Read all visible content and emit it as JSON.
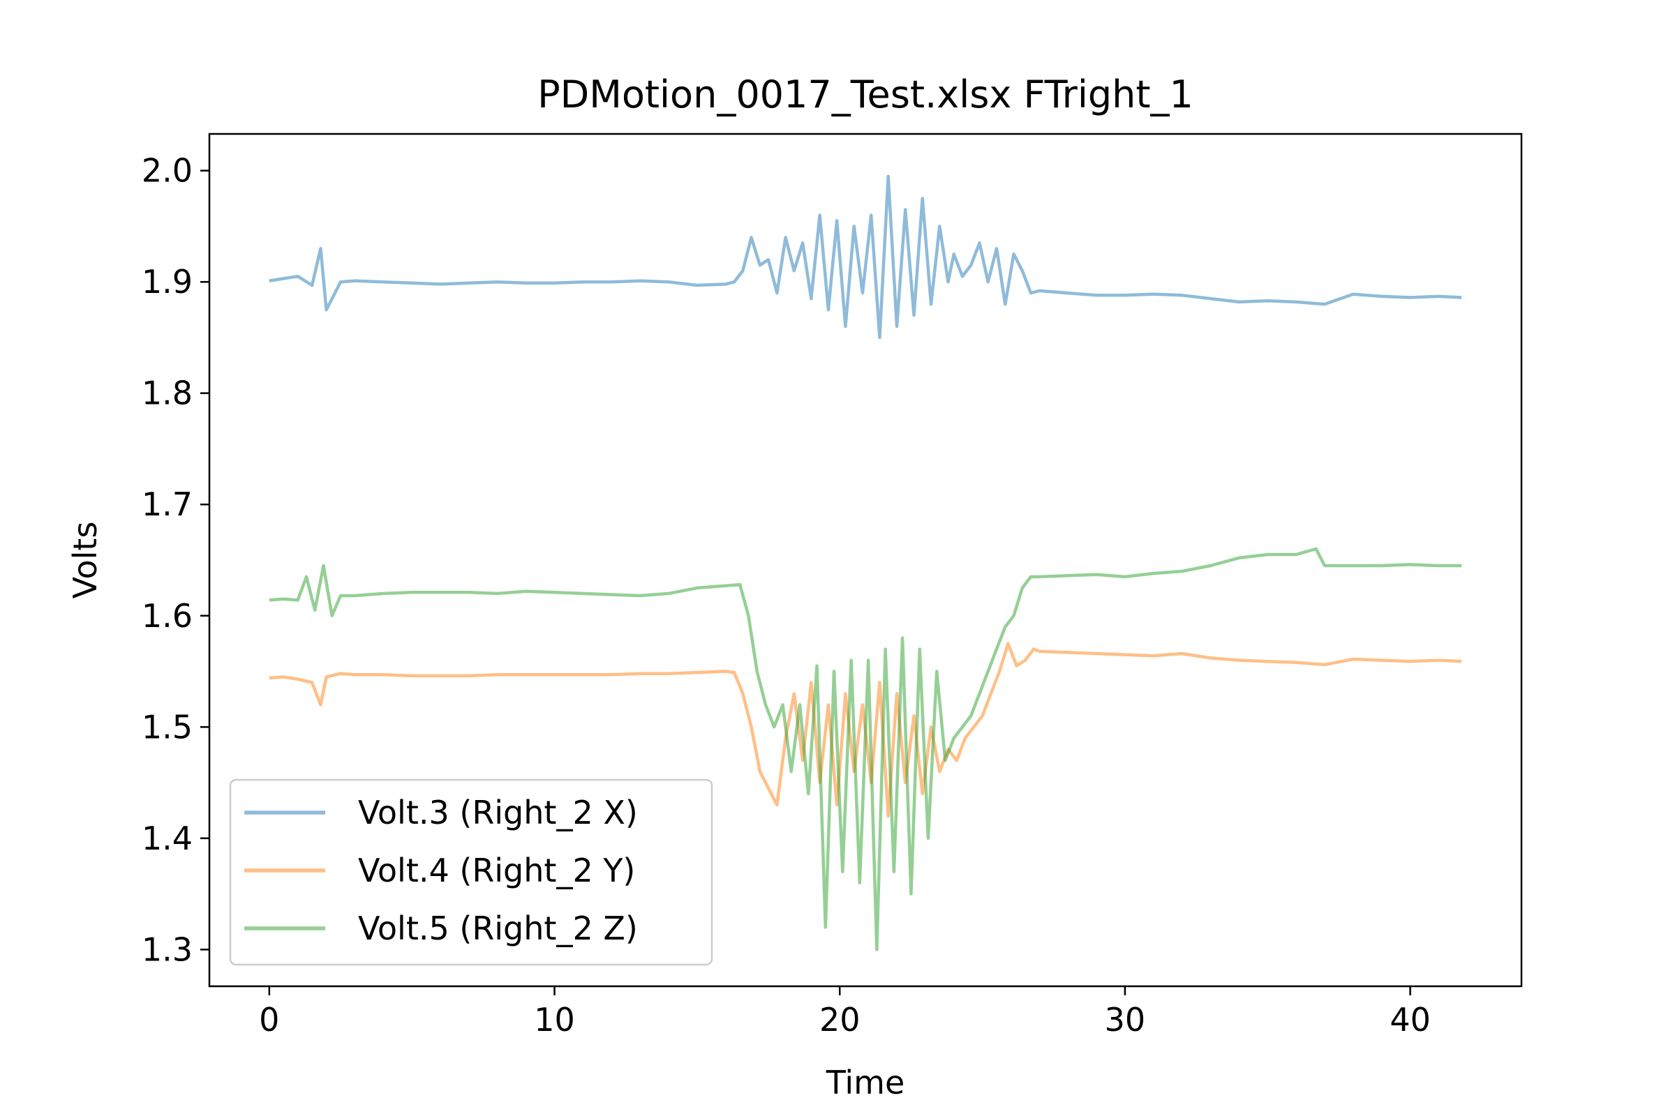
{
  "chart_data": {
    "type": "line",
    "title": "PDMotion_0017_Test.xlsx FTright_1",
    "xlabel": "Time",
    "ylabel": "Volts",
    "xlim": [
      -2.1,
      43.9
    ],
    "ylim": [
      1.267,
      2.033
    ],
    "xticks": [
      0,
      10,
      20,
      30,
      40
    ],
    "yticks": [
      1.3,
      1.4,
      1.5,
      1.6,
      1.7,
      1.8,
      1.9,
      2.0
    ],
    "ytick_labels": [
      "1.3",
      "1.4",
      "1.5",
      "1.6",
      "1.7",
      "1.8",
      "1.9",
      "2.0"
    ],
    "grid": false,
    "legend_position": "lower-left",
    "series": [
      {
        "name": "Volt.3 (Right_2 X)",
        "color": "#1f77b4",
        "x": [
          0,
          0.5,
          1,
          1.5,
          1.8,
          2,
          2.5,
          3,
          4,
          5,
          6,
          7,
          8,
          9,
          10,
          11,
          12,
          13,
          14,
          15,
          16,
          16.3,
          16.6,
          16.9,
          17.2,
          17.5,
          17.8,
          18.1,
          18.4,
          18.7,
          19,
          19.3,
          19.6,
          19.9,
          20.2,
          20.5,
          20.8,
          21.1,
          21.4,
          21.7,
          22,
          22.3,
          22.6,
          22.9,
          23.2,
          23.5,
          23.8,
          24,
          24.3,
          24.6,
          24.9,
          25.2,
          25.5,
          25.8,
          26.1,
          26.4,
          26.7,
          27,
          28,
          29,
          30,
          31,
          32,
          33,
          34,
          35,
          36,
          37,
          38,
          39,
          40,
          41,
          41.8
        ],
        "y": [
          1.901,
          1.903,
          1.905,
          1.897,
          1.93,
          1.875,
          1.9,
          1.901,
          1.9,
          1.899,
          1.898,
          1.899,
          1.9,
          1.899,
          1.899,
          1.9,
          1.9,
          1.901,
          1.9,
          1.897,
          1.898,
          1.9,
          1.91,
          1.94,
          1.915,
          1.92,
          1.89,
          1.94,
          1.91,
          1.935,
          1.885,
          1.96,
          1.875,
          1.955,
          1.86,
          1.95,
          1.89,
          1.96,
          1.85,
          1.995,
          1.86,
          1.965,
          1.87,
          1.975,
          1.88,
          1.95,
          1.9,
          1.925,
          1.905,
          1.915,
          1.935,
          1.9,
          1.93,
          1.88,
          1.925,
          1.91,
          1.89,
          1.892,
          1.89,
          1.888,
          1.888,
          1.889,
          1.888,
          1.885,
          1.882,
          1.883,
          1.882,
          1.88,
          1.889,
          1.887,
          1.886,
          1.887,
          1.886
        ],
        "opacity": 0.5
      },
      {
        "name": "Volt.4 (Right_2 Y)",
        "color": "#ff7f0e",
        "x": [
          0,
          0.5,
          1,
          1.5,
          1.8,
          2,
          2.5,
          3,
          4,
          5,
          6,
          7,
          8,
          9,
          10,
          11,
          12,
          13,
          14,
          15,
          16,
          16.3,
          16.6,
          16.9,
          17.2,
          17.5,
          17.8,
          18.1,
          18.4,
          18.7,
          19,
          19.3,
          19.6,
          19.9,
          20.2,
          20.5,
          20.8,
          21.1,
          21.4,
          21.7,
          22,
          22.3,
          22.6,
          22.9,
          23.2,
          23.5,
          23.8,
          24.1,
          24.4,
          24.7,
          25,
          25.3,
          25.6,
          25.9,
          26.2,
          26.5,
          26.8,
          27,
          28,
          29,
          30,
          31,
          32,
          33,
          34,
          35,
          36,
          37,
          38,
          39,
          40,
          41,
          41.8
        ],
        "y": [
          1.544,
          1.545,
          1.543,
          1.54,
          1.52,
          1.545,
          1.548,
          1.547,
          1.547,
          1.546,
          1.546,
          1.546,
          1.547,
          1.547,
          1.547,
          1.547,
          1.547,
          1.548,
          1.548,
          1.549,
          1.55,
          1.549,
          1.53,
          1.5,
          1.46,
          1.445,
          1.43,
          1.49,
          1.53,
          1.47,
          1.54,
          1.45,
          1.52,
          1.43,
          1.53,
          1.46,
          1.52,
          1.45,
          1.54,
          1.42,
          1.53,
          1.45,
          1.51,
          1.44,
          1.5,
          1.46,
          1.48,
          1.47,
          1.49,
          1.5,
          1.51,
          1.53,
          1.55,
          1.575,
          1.555,
          1.56,
          1.57,
          1.568,
          1.567,
          1.566,
          1.565,
          1.564,
          1.566,
          1.562,
          1.56,
          1.559,
          1.558,
          1.556,
          1.561,
          1.56,
          1.559,
          1.56,
          1.559
        ],
        "opacity": 0.5
      },
      {
        "name": "Volt.5 (Right_2 Z)",
        "color": "#2ca02c",
        "x": [
          0,
          0.5,
          1,
          1.3,
          1.6,
          1.9,
          2.2,
          2.5,
          3,
          4,
          5,
          6,
          7,
          8,
          9,
          10,
          11,
          12,
          13,
          14,
          15,
          16,
          16.5,
          16.8,
          17.1,
          17.4,
          17.7,
          18,
          18.3,
          18.6,
          18.9,
          19.2,
          19.5,
          19.8,
          20.1,
          20.4,
          20.7,
          21,
          21.3,
          21.6,
          21.9,
          22.2,
          22.5,
          22.8,
          23.1,
          23.4,
          23.7,
          24,
          24.3,
          24.6,
          24.9,
          25.2,
          25.5,
          25.8,
          26.1,
          26.4,
          26.7,
          27,
          28,
          29,
          30,
          31,
          32,
          33,
          34,
          35,
          36,
          36.7,
          37,
          38,
          39,
          40,
          41,
          41.8
        ],
        "y": [
          1.614,
          1.615,
          1.614,
          1.635,
          1.605,
          1.645,
          1.6,
          1.618,
          1.618,
          1.62,
          1.621,
          1.621,
          1.621,
          1.62,
          1.622,
          1.621,
          1.62,
          1.619,
          1.618,
          1.62,
          1.625,
          1.627,
          1.628,
          1.6,
          1.55,
          1.52,
          1.5,
          1.52,
          1.46,
          1.52,
          1.44,
          1.555,
          1.32,
          1.55,
          1.37,
          1.56,
          1.36,
          1.56,
          1.3,
          1.57,
          1.37,
          1.58,
          1.35,
          1.57,
          1.4,
          1.55,
          1.47,
          1.49,
          1.5,
          1.51,
          1.53,
          1.55,
          1.57,
          1.59,
          1.6,
          1.625,
          1.635,
          1.635,
          1.636,
          1.637,
          1.635,
          1.638,
          1.64,
          1.645,
          1.652,
          1.655,
          1.655,
          1.66,
          1.645,
          1.645,
          1.645,
          1.646,
          1.645,
          1.645
        ],
        "opacity": 0.5
      }
    ]
  }
}
